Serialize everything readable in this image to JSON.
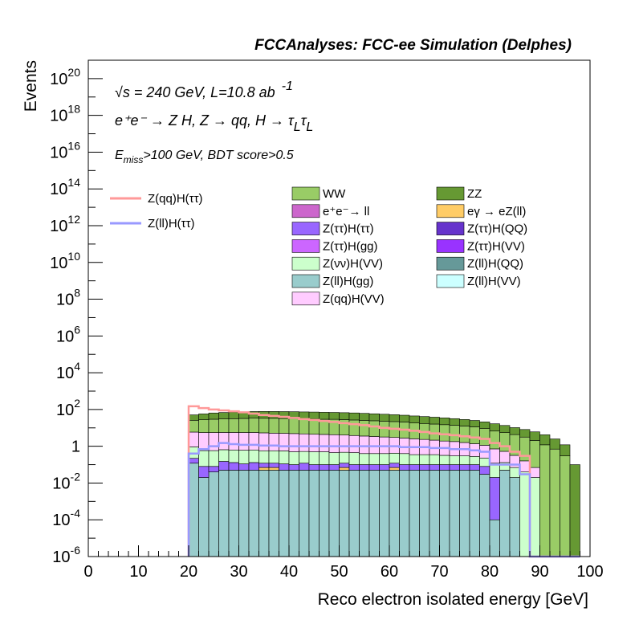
{
  "chart_data": {
    "type": "bar",
    "title": "FCCAnalyses: FCC-ee Simulation (Delphes)",
    "xlabel": "Reco electron isolated energy [GeV]",
    "ylabel": "Events",
    "xlim": [
      0,
      100
    ],
    "ylim": [
      1e-06,
      1e+21
    ],
    "yscale": "log",
    "x_ticks": [
      "0",
      "10",
      "20",
      "30",
      "40",
      "50",
      "60",
      "70",
      "80",
      "90",
      "100"
    ],
    "y_ticks": [
      {
        "value": 1e-06,
        "base": "10",
        "exp": "-6"
      },
      {
        "value": 0.0001,
        "base": "10",
        "exp": "-4"
      },
      {
        "value": 0.01,
        "base": "10",
        "exp": "-2"
      },
      {
        "value": 1,
        "base": "1",
        "exp": ""
      },
      {
        "value": 100,
        "base": "10",
        "exp": "2"
      },
      {
        "value": 10000.0,
        "base": "10",
        "exp": "4"
      },
      {
        "value": 1000000.0,
        "base": "10",
        "exp": "6"
      },
      {
        "value": 100000000.0,
        "base": "10",
        "exp": "8"
      },
      {
        "value": 10000000000.0,
        "base": "10",
        "exp": "10"
      },
      {
        "value": 1000000000000.0,
        "base": "10",
        "exp": "12"
      },
      {
        "value": 100000000000000.0,
        "base": "10",
        "exp": "14"
      },
      {
        "value": 1e+16,
        "base": "10",
        "exp": "16"
      },
      {
        "value": 1e+18,
        "base": "10",
        "exp": "18"
      },
      {
        "value": 1e+20,
        "base": "10",
        "exp": "20"
      }
    ],
    "annotations": {
      "line1": "√s = 240 GeV, L=10.8 ab",
      "line1_sup": "-1",
      "line2": "e⁺e⁻ → Z H, Z → qq, H → τ",
      "line2_sub": "L",
      "line2_b": "τ",
      "line2_sub2": "L",
      "line3_a": "E",
      "line3_sub": "miss",
      "line3_b": ">100 GeV, BDT score>0.5"
    },
    "bin_edges": {
      "start": 20,
      "width": 2,
      "count": 39
    },
    "stack": [
      {
        "name": "Z(ll)H(gg)",
        "color": "#99cccc",
        "values": [
          0.12,
          0.02,
          0.04,
          0.05,
          0.05,
          0.05,
          0.05,
          0.05,
          0.05,
          0.05,
          0.05,
          0.05,
          0.05,
          0.05,
          0.05,
          0.05,
          0.05,
          0.05,
          0.05,
          0.05,
          0.05,
          0.05,
          0.05,
          0.05,
          0.05,
          0.05,
          0.05,
          0.05,
          0.05,
          0.03,
          0.0001,
          0.05,
          0.02,
          0,
          0,
          0,
          0,
          0,
          0
        ]
      },
      {
        "name": "eγ → eZ(ll)",
        "color": "#ffcc66",
        "values": [
          0,
          0,
          0,
          0,
          0,
          0,
          0,
          0.02,
          0.02,
          0,
          0,
          0,
          0,
          0,
          0,
          0.02,
          0,
          0,
          0,
          0,
          0.02,
          0,
          0,
          0,
          0,
          0,
          0,
          0,
          0,
          0,
          0,
          0,
          0,
          0,
          0,
          0,
          0,
          0,
          0
        ]
      },
      {
        "name": "Z(ττ)H(ττ)",
        "color": "#9966ff",
        "values": [
          0.1,
          0.06,
          0.04,
          0.1,
          0.08,
          0.06,
          0.08,
          0.05,
          0.05,
          0.06,
          0.05,
          0.07,
          0.05,
          0.05,
          0.05,
          0.05,
          0.05,
          0.05,
          0.05,
          0.05,
          0.05,
          0.05,
          0.05,
          0.05,
          0.05,
          0.05,
          0.05,
          0.05,
          0.05,
          0.05,
          0.02,
          0,
          0,
          0,
          0,
          0,
          0,
          0,
          0
        ]
      },
      {
        "name": "Z(νν)H(VV)",
        "color": "#ccffcc",
        "values": [
          0.7,
          0.5,
          0.5,
          0.5,
          0.5,
          0.5,
          0.5,
          0.45,
          0.45,
          0.45,
          0.4,
          0.4,
          0.4,
          0.4,
          0.35,
          0.35,
          0.35,
          0.3,
          0.3,
          0.3,
          0.3,
          0.3,
          0.25,
          0.25,
          0.25,
          0.22,
          0.2,
          0.2,
          0.18,
          0.15,
          0.1,
          0.08,
          0.05,
          0.04,
          0.02,
          0,
          0,
          0,
          0
        ]
      },
      {
        "name": "Z(qq)H(VV)",
        "color": "#ffccff",
        "values": [
          5,
          5,
          5,
          5,
          5,
          5,
          5,
          4.8,
          4.6,
          4.5,
          4.4,
          4.2,
          4,
          3.9,
          3.8,
          3.6,
          3.4,
          3.2,
          3,
          2.8,
          2.6,
          2.4,
          2.2,
          2,
          1.8,
          1.6,
          1.5,
          1.3,
          1.1,
          0.9,
          0.6,
          0.4,
          0.25,
          0.12,
          0.05,
          0,
          0,
          0,
          0
        ]
      },
      {
        "name": "WW",
        "color": "#99cc66",
        "values": [
          20,
          22,
          24,
          25,
          26,
          27,
          28,
          28,
          28,
          27,
          27,
          26,
          26,
          25,
          25,
          24,
          23,
          22,
          21,
          20,
          19,
          18,
          16,
          15,
          14,
          13,
          12,
          11,
          10,
          8,
          6,
          5,
          4,
          3,
          2,
          1.2,
          0.7,
          0.3,
          0
        ]
      },
      {
        "name": "ZZ",
        "color": "#669933",
        "values": [
          25,
          30,
          35,
          38,
          40,
          42,
          44,
          45,
          45,
          45,
          44,
          43,
          42,
          41,
          40,
          39,
          38,
          36,
          34,
          32,
          30,
          28,
          26,
          24,
          22,
          20,
          18,
          16,
          14,
          12,
          10,
          8,
          6,
          5,
          4,
          3,
          1.8,
          0.9,
          0.1
        ]
      }
    ],
    "overlay": [
      {
        "name": "Z(qq)H(ττ)",
        "color": "#ff9999",
        "values": [
          150,
          120,
          100,
          90,
          80,
          70,
          60,
          50,
          45,
          40,
          35,
          30,
          27,
          24,
          21,
          18,
          16,
          14,
          12,
          10,
          9,
          8,
          7,
          6,
          5,
          4.5,
          4,
          3.5,
          3,
          2.5,
          1.5,
          1,
          0.5,
          0.3,
          0,
          0,
          0,
          0,
          0
        ]
      },
      {
        "name": "Z(ll)H(ττ)",
        "color": "#9999ff",
        "values": [
          0.4,
          0.7,
          1,
          1.5,
          1.3,
          1.2,
          1.2,
          1.1,
          1.1,
          1,
          1,
          1,
          1,
          1,
          1,
          1,
          1,
          1,
          1,
          1,
          1,
          0.9,
          0.9,
          0.9,
          0.8,
          0.8,
          0.7,
          0.7,
          0.6,
          0.5,
          0.1,
          0.1,
          0.1,
          0.03,
          0,
          0,
          0,
          0,
          0
        ]
      }
    ],
    "legend": {
      "lines": [
        {
          "name": "Z(qq)H(ττ)",
          "color": "#ff9999"
        },
        {
          "name": "Z(ll)H(ττ)",
          "color": "#9999ff"
        }
      ],
      "col1": [
        {
          "name": "WW",
          "color": "#99cc66"
        },
        {
          "name": "e⁺e⁻→ ll",
          "color": "#cc66cc"
        },
        {
          "name": "Z(ττ)H(ττ)",
          "color": "#9966ff"
        },
        {
          "name": "Z(ττ)H(gg)",
          "color": "#cc66ff"
        },
        {
          "name": "Z(νν)H(VV)",
          "color": "#ccffcc"
        },
        {
          "name": "Z(ll)H(gg)",
          "color": "#99cccc"
        },
        {
          "name": "Z(qq)H(VV)",
          "color": "#ffccff"
        }
      ],
      "col2": [
        {
          "name": "ZZ",
          "color": "#669933"
        },
        {
          "name": "eγ → eZ(ll)",
          "color": "#ffcc66"
        },
        {
          "name": "Z(ττ)H(QQ)",
          "color": "#6633cc"
        },
        {
          "name": "Z(ττ)H(VV)",
          "color": "#9933ff"
        },
        {
          "name": "Z(ll)H(QQ)",
          "color": "#669999"
        },
        {
          "name": "Z(ll)H(VV)",
          "color": "#ccffff"
        }
      ]
    }
  }
}
